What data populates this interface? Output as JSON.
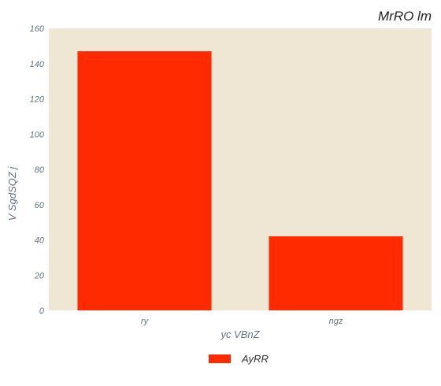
{
  "chart_data": {
    "type": "bar",
    "title": "MrRO lm",
    "xlabel": "yc VBnZ",
    "ylabel": "V SgdSQZ  j",
    "categories": [
      "ry",
      "ngz"
    ],
    "series": [
      {
        "name": "AyRR",
        "values": [
          147,
          42
        ],
        "color": "#ff2a00"
      }
    ],
    "ylim": [
      0,
      160
    ],
    "yticks": [
      0,
      20,
      40,
      60,
      80,
      100,
      120,
      140,
      160
    ],
    "grid": false,
    "legend": "bottom-center",
    "plot_background": "#efe6d3"
  }
}
